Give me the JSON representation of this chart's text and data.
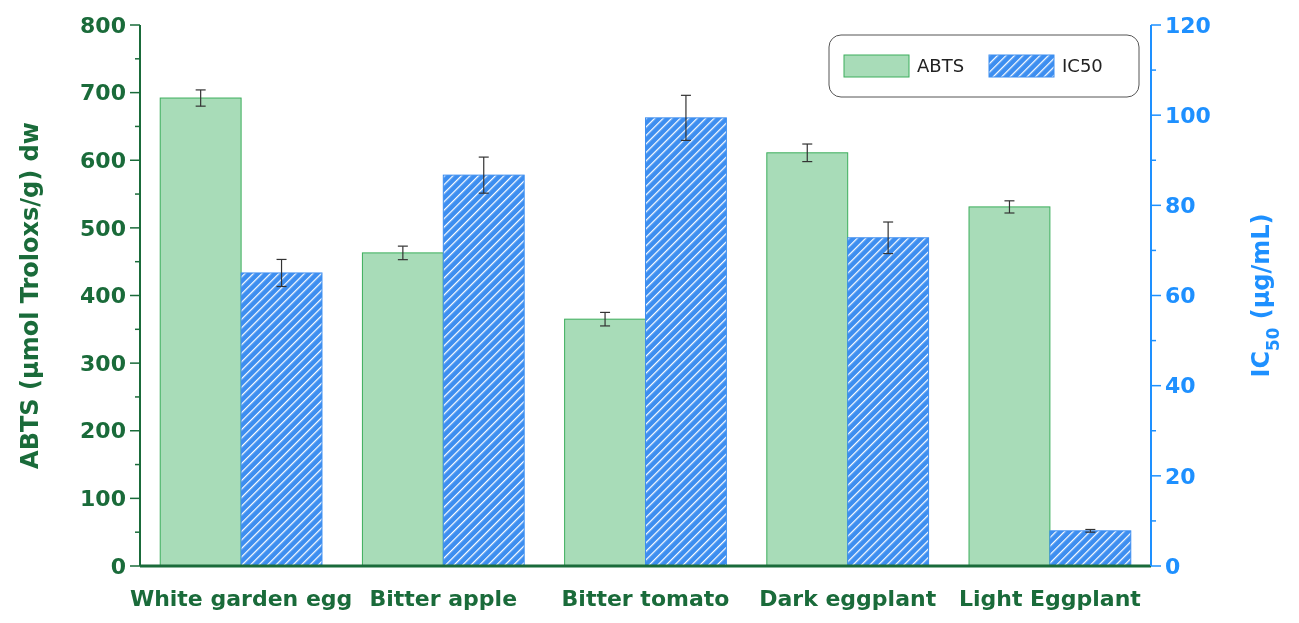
{
  "chart_data": {
    "type": "bar",
    "categories": [
      "White garden egg",
      "Bitter apple",
      "Bitter tomato",
      "Dark eggplant",
      "Light Eggplant"
    ],
    "ylabel": "ABTS (µmol Troloxs/g) dw",
    "y2label": "IC$_{50}$ (µg/mL)",
    "ylim": [
      0,
      800
    ],
    "yticks": [
      0,
      {
        "value": 50,
        "label": null
      },
      100,
      {
        "value": 150,
        "label": null
      },
      200,
      {
        "value": 250,
        "label": null
      },
      300,
      {
        "value": 350,
        "label": null
      },
      400,
      {
        "value": 450,
        "label": null
      },
      500,
      {
        "value": 550,
        "label": null
      },
      600,
      {
        "value": 650,
        "label": null
      },
      700,
      {
        "value": 750,
        "label": null
      },
      800
    ],
    "y2lim": [
      0,
      120
    ],
    "y2ticks": [
      0,
      {
        "value": 10,
        "label": null
      },
      20,
      {
        "value": 30,
        "label": null
      },
      40,
      {
        "value": 50,
        "label": null
      },
      60,
      {
        "value": 70,
        "label": null
      },
      80,
      {
        "value": 90,
        "label": null
      },
      100,
      {
        "value": 110,
        "label": null
      },
      120
    ],
    "series": [
      {
        "name": "ABTS",
        "color": "#a8dcb8",
        "values": [
          692,
          463,
          365,
          611,
          531
        ],
        "errors": [
          12,
          10,
          10,
          13,
          9
        ]
      },
      {
        "name": "IC50",
        "color": "#3d8ef0",
        "axis": "y2",
        "values": [
          65,
          86.7,
          99.4,
          72.8,
          7.8
        ],
        "errors": [
          3,
          4,
          5,
          3.5,
          0.3
        ]
      }
    ],
    "legend": "top right",
    "grid": false
  }
}
